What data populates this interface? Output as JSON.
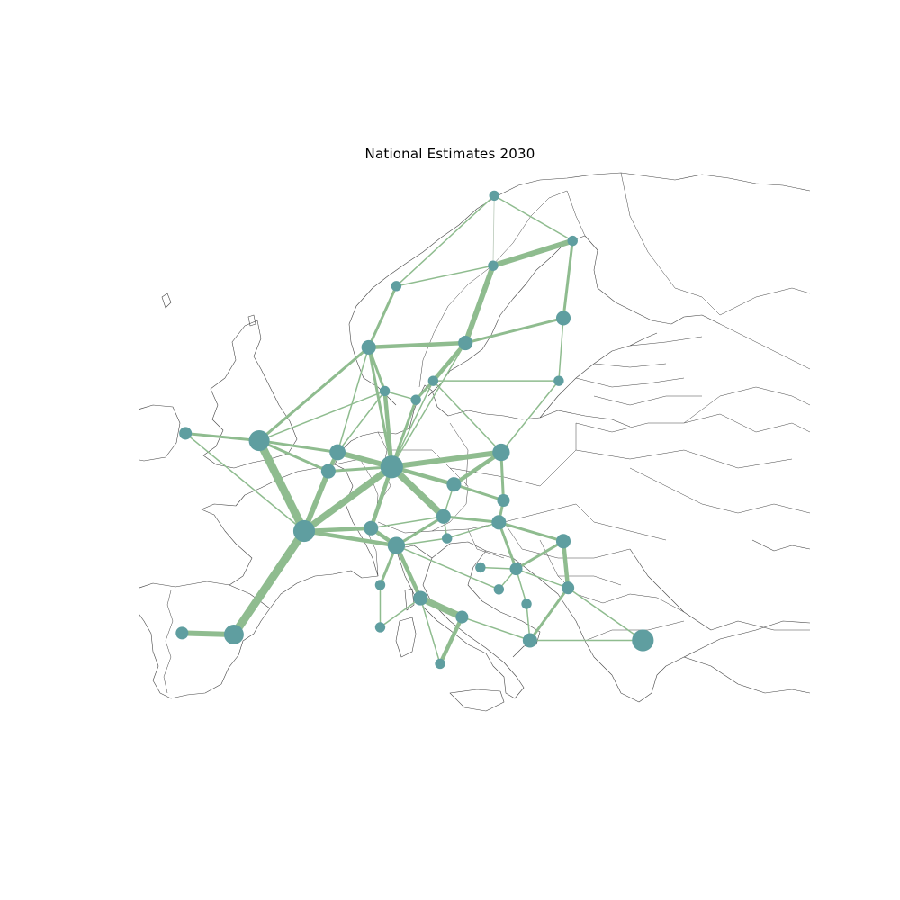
{
  "title": "National Estimates 2030",
  "colors": {
    "node": "#5f9ea0",
    "link": "#8fbc8f",
    "link_light": "#b9c9b9",
    "coastline": "#444444",
    "background": "#ffffff"
  },
  "network": {
    "nodes": [
      {
        "id": "no-north",
        "lon": 18.9,
        "lat": 69.6,
        "load": 1
      },
      {
        "id": "fi-north",
        "lon": 25.7,
        "lat": 66.5,
        "load": 1
      },
      {
        "id": "se-north",
        "lon": 18.8,
        "lat": 64.8,
        "load": 1
      },
      {
        "id": "no-mid",
        "lon": 10.4,
        "lat": 63.4,
        "load": 1
      },
      {
        "id": "fi-south",
        "lon": 24.9,
        "lat": 61.2,
        "load": 3
      },
      {
        "id": "no-south",
        "lon": 8.0,
        "lat": 59.2,
        "load": 3
      },
      {
        "id": "se-mid",
        "lon": 16.4,
        "lat": 59.5,
        "load": 3
      },
      {
        "id": "se-south",
        "lon": 13.6,
        "lat": 56.9,
        "load": 1
      },
      {
        "id": "dk-west",
        "lon": 9.4,
        "lat": 56.2,
        "load": 1
      },
      {
        "id": "dk-east",
        "lon": 12.1,
        "lat": 55.6,
        "load": 1
      },
      {
        "id": "baltic",
        "lon": 24.5,
        "lat": 56.9,
        "load": 1
      },
      {
        "id": "ie",
        "lon": -7.9,
        "lat": 53.3,
        "load": 2
      },
      {
        "id": "gb",
        "lon": -1.5,
        "lat": 52.8,
        "load": 8
      },
      {
        "id": "nl",
        "lon": 5.3,
        "lat": 52.0,
        "load": 4
      },
      {
        "id": "be",
        "lon": 4.5,
        "lat": 50.7,
        "load": 3
      },
      {
        "id": "de",
        "lon": 10.0,
        "lat": 51.0,
        "load": 10
      },
      {
        "id": "pl",
        "lon": 19.5,
        "lat": 52.0,
        "load": 5
      },
      {
        "id": "cz",
        "lon": 15.4,
        "lat": 49.8,
        "load": 3
      },
      {
        "id": "sk",
        "lon": 19.7,
        "lat": 48.7,
        "load": 2
      },
      {
        "id": "at",
        "lon": 14.5,
        "lat": 47.6,
        "load": 3
      },
      {
        "id": "hu",
        "lon": 19.3,
        "lat": 47.2,
        "load": 3
      },
      {
        "id": "fr",
        "lon": 2.4,
        "lat": 46.6,
        "load": 9
      },
      {
        "id": "ch",
        "lon": 8.2,
        "lat": 46.8,
        "load": 3
      },
      {
        "id": "it-north",
        "lon": 10.4,
        "lat": 45.6,
        "load": 5
      },
      {
        "id": "si",
        "lon": 14.8,
        "lat": 46.1,
        "load": 1
      },
      {
        "id": "ro",
        "lon": 24.9,
        "lat": 45.9,
        "load": 3
      },
      {
        "id": "rs",
        "lon": 20.8,
        "lat": 44.0,
        "load": 2
      },
      {
        "id": "ba",
        "lon": 17.7,
        "lat": 44.1,
        "load": 1
      },
      {
        "id": "it-centre",
        "lon": 12.5,
        "lat": 42.0,
        "load": 3
      },
      {
        "id": "it-corsica",
        "lon": 9.0,
        "lat": 42.9,
        "load": 1
      },
      {
        "id": "bg",
        "lon": 25.3,
        "lat": 42.7,
        "load": 2
      },
      {
        "id": "me",
        "lon": 19.3,
        "lat": 42.6,
        "load": 1
      },
      {
        "id": "mk",
        "lon": 21.7,
        "lat": 41.6,
        "load": 1
      },
      {
        "id": "it-south",
        "lon": 16.1,
        "lat": 40.7,
        "load": 2
      },
      {
        "id": "sardinia",
        "lon": 9.0,
        "lat": 40.0,
        "load": 1
      },
      {
        "id": "gr",
        "lon": 22.0,
        "lat": 39.1,
        "load": 3
      },
      {
        "id": "pt",
        "lon": -8.2,
        "lat": 39.6,
        "load": 2
      },
      {
        "id": "es",
        "lon": -3.7,
        "lat": 39.5,
        "load": 7
      },
      {
        "id": "tr",
        "lon": 31.8,
        "lat": 39.1,
        "load": 9
      },
      {
        "id": "sicily",
        "lon": 14.2,
        "lat": 37.5,
        "load": 1
      }
    ],
    "links": [
      [
        "ie",
        "gb",
        2
      ],
      [
        "gb",
        "fr",
        6
      ],
      [
        "gb",
        "be",
        2
      ],
      [
        "gb",
        "nl",
        2
      ],
      [
        "gb",
        "no-south",
        2
      ],
      [
        "gb",
        "dk-west",
        1
      ],
      [
        "fr",
        "es",
        6
      ],
      [
        "es",
        "pt",
        4
      ],
      [
        "fr",
        "be",
        4
      ],
      [
        "fr",
        "de",
        5
      ],
      [
        "fr",
        "ch",
        3
      ],
      [
        "fr",
        "it-north",
        3
      ],
      [
        "fr",
        "ie",
        1
      ],
      [
        "be",
        "nl",
        3
      ],
      [
        "be",
        "de",
        2
      ],
      [
        "nl",
        "de",
        4
      ],
      [
        "nl",
        "no-south",
        1
      ],
      [
        "nl",
        "dk-west",
        1
      ],
      [
        "de",
        "dk-west",
        3
      ],
      [
        "de",
        "dk-east",
        2
      ],
      [
        "de",
        "no-south",
        2
      ],
      [
        "de",
        "se-south",
        1
      ],
      [
        "de",
        "se-mid",
        1
      ],
      [
        "de",
        "pl",
        4
      ],
      [
        "de",
        "cz",
        3
      ],
      [
        "de",
        "at",
        5
      ],
      [
        "de",
        "ch",
        3
      ],
      [
        "ch",
        "it-north",
        3
      ],
      [
        "ch",
        "at",
        1
      ],
      [
        "at",
        "it-north",
        2
      ],
      [
        "at",
        "si",
        1
      ],
      [
        "at",
        "hu",
        2
      ],
      [
        "at",
        "cz",
        1
      ],
      [
        "cz",
        "pl",
        3
      ],
      [
        "cz",
        "sk",
        2
      ],
      [
        "pl",
        "sk",
        2
      ],
      [
        "pl",
        "baltic",
        1
      ],
      [
        "pl",
        "se-south",
        1
      ],
      [
        "sk",
        "hu",
        2
      ],
      [
        "hu",
        "ro",
        2
      ],
      [
        "hu",
        "rs",
        2
      ],
      [
        "hu",
        "si",
        1
      ],
      [
        "ro",
        "bg",
        3
      ],
      [
        "ro",
        "rs",
        2
      ],
      [
        "rs",
        "bg",
        1
      ],
      [
        "rs",
        "mk",
        1
      ],
      [
        "rs",
        "ba",
        1
      ],
      [
        "rs",
        "me",
        1
      ],
      [
        "bg",
        "gr",
        2
      ],
      [
        "bg",
        "tr",
        1
      ],
      [
        "mk",
        "gr",
        1
      ],
      [
        "gr",
        "tr",
        1
      ],
      [
        "it-north",
        "it-centre",
        3
      ],
      [
        "it-north",
        "si",
        1
      ],
      [
        "it-north",
        "it-corsica",
        2
      ],
      [
        "it-corsica",
        "sardinia",
        1
      ],
      [
        "it-centre",
        "it-south",
        5
      ],
      [
        "it-centre",
        "sardinia",
        1
      ],
      [
        "it-centre",
        "sicily",
        1
      ],
      [
        "it-south",
        "sicily",
        3
      ],
      [
        "it-south",
        "gr",
        1
      ],
      [
        "it-north",
        "me",
        1
      ],
      [
        "no-south",
        "no-mid",
        2
      ],
      [
        "no-south",
        "se-mid",
        3
      ],
      [
        "no-south",
        "dk-west",
        2
      ],
      [
        "no-mid",
        "se-north",
        1
      ],
      [
        "no-mid",
        "no-north",
        1
      ],
      [
        "se-north",
        "se-mid",
        4
      ],
      [
        "se-mid",
        "se-south",
        3
      ],
      [
        "se-mid",
        "fi-south",
        2
      ],
      [
        "se-south",
        "dk-east",
        2
      ],
      [
        "se-south",
        "baltic",
        1
      ],
      [
        "se-north",
        "fi-north",
        4
      ],
      [
        "fi-north",
        "fi-south",
        2
      ],
      [
        "fi-south",
        "baltic",
        1
      ],
      [
        "no-north",
        "se-north",
        0.5
      ],
      [
        "no-north",
        "fi-north",
        1
      ],
      [
        "dk-west",
        "dk-east",
        1
      ]
    ]
  }
}
